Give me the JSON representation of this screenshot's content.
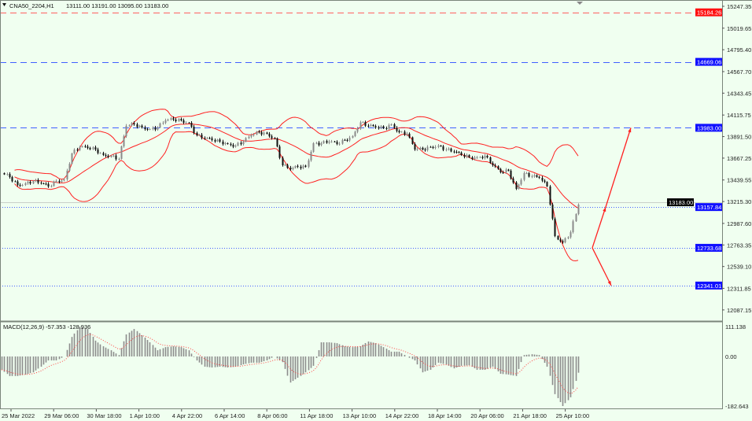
{
  "header": {
    "symbol": "CNA50_2204,H1",
    "ohlc": "13111.00 13191.00 13095.00 13183.00"
  },
  "colors": {
    "background": "#f0fff0",
    "bollinger": "#ff2020",
    "bull_candle": "#8a8a8a",
    "bear_candle": "#111111",
    "resistance_line": "#ff6060",
    "level_line": "#4060ff",
    "macd_histogram": "#8c8c8c",
    "macd_signal": "#ff4040",
    "arrow": "#ff2020"
  },
  "chart_data": [
    {
      "type": "candlestick",
      "title": "CNA50_2204,H1",
      "indicators": [
        "Bollinger Bands"
      ],
      "x_tick_labels": [
        "25 Mar 2022",
        "29 Mar 06:00",
        "30 Mar 18:00",
        "1 Apr 10:00",
        "4 Apr 22:00",
        "6 Apr 14:00",
        "8 Apr 06:00",
        "11 Apr 18:00",
        "13 Apr 10:00",
        "14 Apr 22:00",
        "18 Apr 14:00",
        "20 Apr 06:00",
        "21 Apr 18:00",
        "25 Apr 10:00"
      ],
      "y_tick_labels": [
        "15247.35",
        "15019.65",
        "14795.40",
        "14567.70",
        "14343.45",
        "14115.75",
        "13891.50",
        "13667.25",
        "13439.55",
        "13215.30",
        "12987.60",
        "12763.35",
        "12539.10",
        "12311.85",
        "12087.15"
      ],
      "ylim": [
        12000,
        15270
      ],
      "grid": false,
      "closes": [
        13511,
        13470,
        13388,
        13405,
        13429,
        13405,
        13372,
        13429,
        13446,
        13716,
        13782,
        13773,
        13757,
        13700,
        13691,
        13659,
        14003,
        14019,
        13986,
        13970,
        13986,
        14060,
        14068,
        14060,
        14035,
        13904,
        13872,
        13855,
        13839,
        13814,
        13798,
        13839,
        13904,
        13937,
        13921,
        13872,
        13593,
        13552,
        13577,
        13577,
        13822,
        13822,
        13839,
        13814,
        13855,
        13896,
        14040,
        14003,
        13986,
        13978,
        14019,
        13937,
        13921,
        13757,
        13757,
        13782,
        13798,
        13757,
        13732,
        13700,
        13675,
        13675,
        13691,
        13593,
        13519,
        13536,
        13347,
        13511,
        13478,
        13462,
        13372,
        12856,
        12790,
        12897,
        13183
      ],
      "current_price": "13183.00",
      "horizontal_levels": [
        {
          "value": "15184.26",
          "style": "dashed",
          "color": "#ff6060"
        },
        {
          "value": "14669.06",
          "style": "dashed",
          "color": "#4060ff"
        },
        {
          "value": "13983.00",
          "style": "dashed",
          "color": "#4060ff"
        },
        {
          "value": "13157.84",
          "style": "dotted",
          "color": "#4060ff"
        },
        {
          "value": "12733.68",
          "style": "dotted",
          "color": "#4060ff"
        },
        {
          "value": "12341.01",
          "style": "dotted",
          "color": "#4060ff"
        }
      ],
      "scenario_arrows": [
        {
          "direction": "up",
          "from": 12733.68,
          "via": 13157.84,
          "to": 13983.0
        },
        {
          "direction": "down",
          "from": 12733.68,
          "to": 12341.01
        }
      ]
    },
    {
      "type": "bar",
      "title": "MACD(12,26,9) -57.353 -128.936",
      "y_tick_labels": [
        "111.138",
        "0.00",
        "-182.643"
      ],
      "ylim": [
        -182.643,
        111.138
      ],
      "histogram": [
        -47,
        -69,
        -69,
        -64,
        -56,
        -36,
        -14,
        -14,
        0,
        69,
        105,
        97,
        56,
        36,
        22,
        5,
        78,
        97,
        75,
        50,
        22,
        33,
        36,
        33,
        22,
        -14,
        -36,
        -39,
        -36,
        -39,
        -36,
        -28,
        -22,
        -22,
        -14,
        0,
        -20,
        -92,
        -75,
        -56,
        -33,
        50,
        50,
        47,
        36,
        33,
        36,
        53,
        47,
        33,
        17,
        17,
        0,
        -14,
        -56,
        -47,
        -22,
        -28,
        -42,
        -33,
        -31,
        -47,
        -47,
        -36,
        -61,
        -64,
        -69,
        5,
        8,
        5,
        -36,
        -133,
        -175,
        -144,
        -57.353
      ],
      "signal_last": -128.936
    }
  ]
}
